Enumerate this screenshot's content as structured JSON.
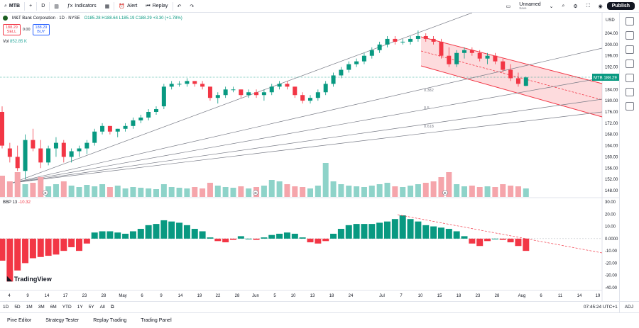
{
  "topbar": {
    "symbol": "MTB",
    "interval": "D",
    "indicators_label": "Indicators",
    "alert_label": "Alert",
    "replay_label": "Replay",
    "layout_name": "Unnamed",
    "layout_sub": "Save",
    "publish_label": "Publish"
  },
  "legend": {
    "title": "M&T Bank Corporation · 1D · NYSE",
    "ohlc": "O185.28 H188.64 L185.19 C188.29 +3.30 (+1.78%)",
    "sell_price": "188.29",
    "sell_label": "SELL",
    "spread": "0.00",
    "buy_price": "188.29",
    "buy_label": "BUY",
    "vol_label": "Vol",
    "vol_value": "852.85 K",
    "bbp_label": "BBP 13",
    "bbp_value": "-10.32"
  },
  "price_axis": [
    "204.00",
    "200.00",
    "196.00",
    "192.00",
    "188.00",
    "184.00",
    "180.00",
    "176.00",
    "172.00",
    "168.00",
    "164.00",
    "160.00",
    "156.00",
    "152.00",
    "148.00"
  ],
  "price_axis_currency": "USD",
  "price_tag": "MTB 188.29",
  "bbp_axis": [
    "30.00",
    "20.00",
    "10.00",
    "0.0000",
    "-10.00",
    "-20.00",
    "-30.00",
    "-40.00"
  ],
  "time_axis": [
    "4",
    "9",
    "14",
    "17",
    "23",
    "28",
    "May",
    "6",
    "9",
    "14",
    "19",
    "22",
    "28",
    "Jun",
    "5",
    "10",
    "13",
    "18",
    "24",
    "Jul",
    "7",
    "10",
    "15",
    "18",
    "23",
    "28",
    "Aug",
    "6",
    "11",
    "14",
    "19"
  ],
  "fib_labels": [
    "0.382",
    "0.5",
    "0.618"
  ],
  "events": [
    "E",
    "D",
    "E"
  ],
  "bottom": {
    "timeframes": [
      "1D",
      "5D",
      "1M",
      "3M",
      "6M",
      "YTD",
      "1Y",
      "5Y",
      "All"
    ],
    "clock": "07:45:24 UTC+1",
    "adj": "ADJ"
  },
  "footer": [
    "Pine Editor",
    "Strategy Tester",
    "Replay Trading",
    "Trading Panel"
  ],
  "logo_text": "TradingView",
  "colors": {
    "up": "#089981",
    "down": "#f23645",
    "channel": "#f23645",
    "vol_up": "#8ed3c9",
    "vol_down": "#f5a5ab"
  }
}
